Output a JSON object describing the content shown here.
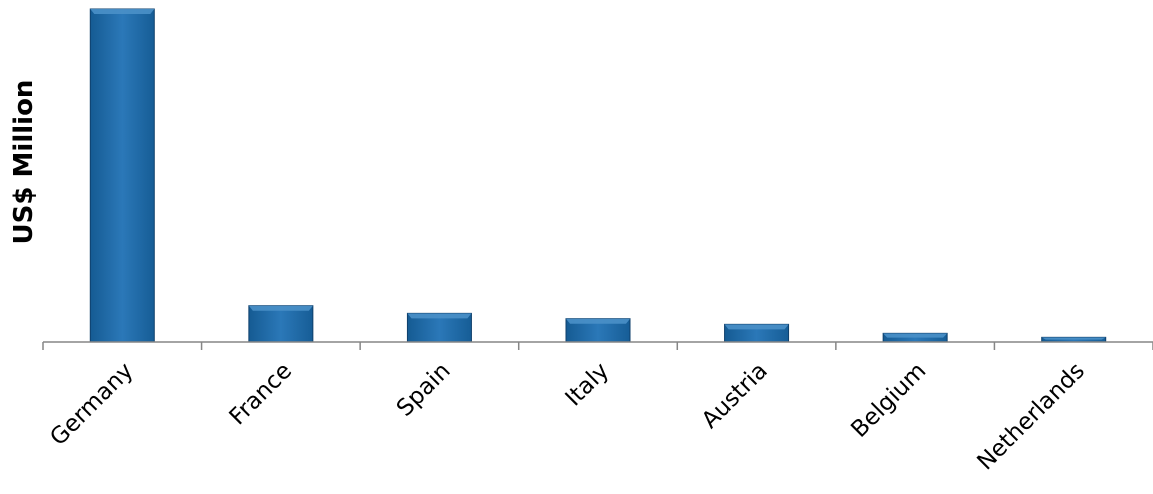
{
  "chart_data": {
    "type": "bar",
    "title": "",
    "xlabel": "",
    "ylabel": "US$ Million",
    "categories": [
      "Germany",
      "France",
      "Spain",
      "Italy",
      "Austria",
      "Belgium",
      "Netherlands"
    ],
    "values": [
      100,
      10.9,
      8.6,
      7.0,
      5.3,
      2.6,
      1.4
    ],
    "ylim": [
      0,
      100
    ],
    "grid": false,
    "legend": "none",
    "colors": {
      "bar": "#1f6aa5",
      "bar_dark": "#0e3f6b",
      "bar_light": "#4a90c8",
      "axis": "#868686"
    }
  }
}
